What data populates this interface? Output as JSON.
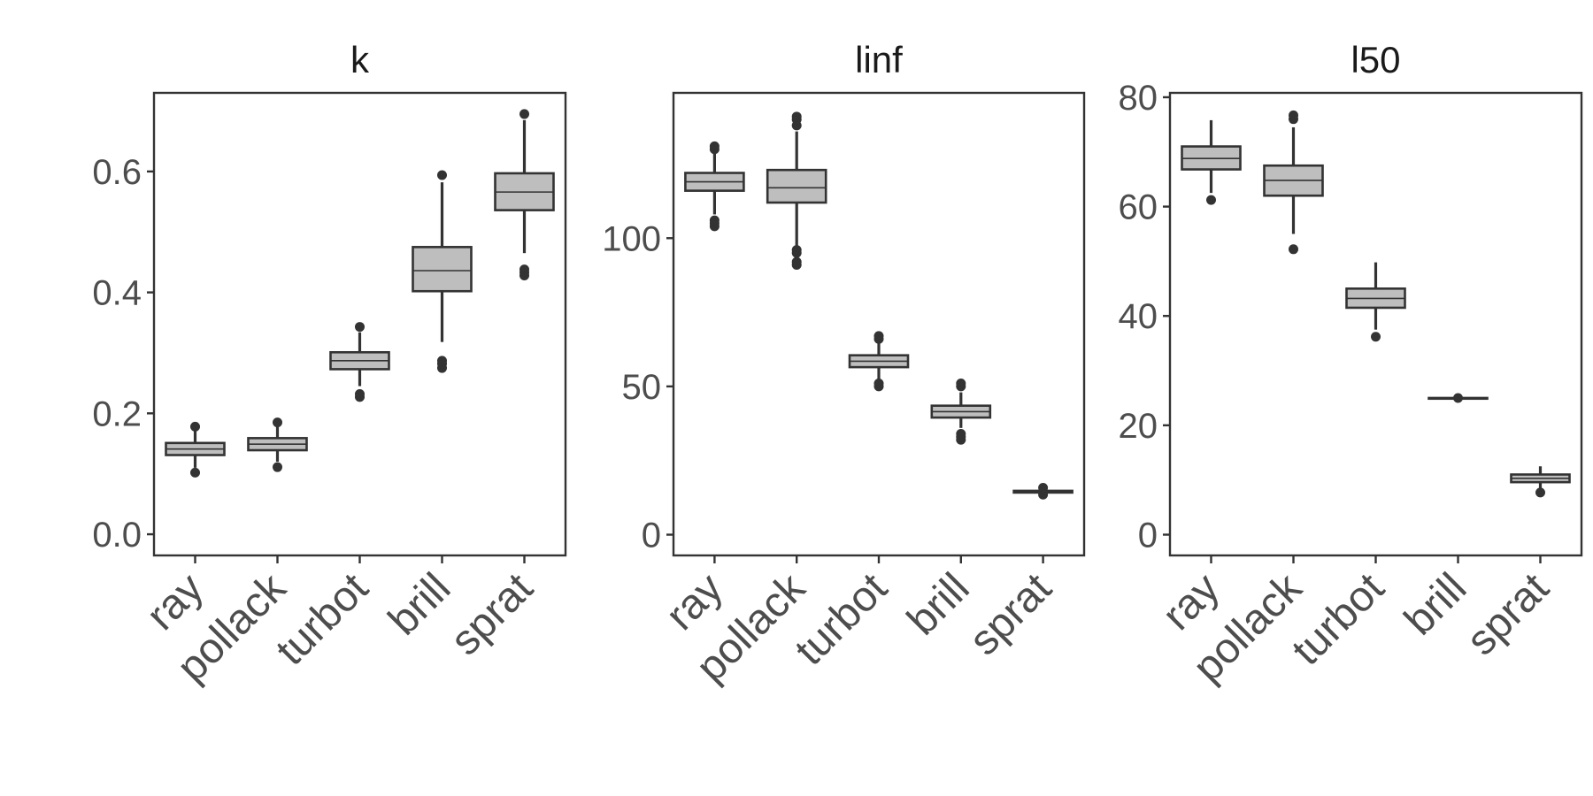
{
  "chart_data": [
    {
      "type": "box",
      "title": "k",
      "xlabel": "",
      "ylabel": "",
      "ylim": [
        -0.035,
        0.73
      ],
      "yticks": [
        0.0,
        0.2,
        0.4,
        0.6
      ],
      "ytick_labels": [
        "0.0",
        "0.2",
        "0.4",
        "0.6"
      ],
      "categories": [
        "ray",
        "pollack",
        "turbot",
        "brill",
        "sprat"
      ],
      "boxes": [
        {
          "min": 0.11,
          "q1": 0.131,
          "median": 0.141,
          "q3": 0.151,
          "max": 0.172,
          "outliers": [
            0.102,
            0.178
          ]
        },
        {
          "min": 0.12,
          "q1": 0.139,
          "median": 0.149,
          "q3": 0.159,
          "max": 0.181,
          "outliers": [
            0.111,
            0.185
          ]
        },
        {
          "min": 0.245,
          "q1": 0.273,
          "median": 0.287,
          "q3": 0.301,
          "max": 0.334,
          "outliers": [
            0.227,
            0.232,
            0.343
          ]
        },
        {
          "min": 0.318,
          "q1": 0.402,
          "median": 0.436,
          "q3": 0.475,
          "max": 0.582,
          "outliers": [
            0.275,
            0.282,
            0.287,
            0.594
          ]
        },
        {
          "min": 0.465,
          "q1": 0.536,
          "median": 0.566,
          "q3": 0.597,
          "max": 0.685,
          "outliers": [
            0.428,
            0.433,
            0.438,
            0.695
          ]
        }
      ]
    },
    {
      "type": "box",
      "title": "linf",
      "xlabel": "",
      "ylabel": "",
      "ylim": [
        -7,
        149
      ],
      "yticks": [
        0,
        50,
        100
      ],
      "ytick_labels": [
        "0",
        "50",
        "100"
      ],
      "categories": [
        "ray",
        "pollack",
        "turbot",
        "brill",
        "sprat"
      ],
      "boxes": [
        {
          "min": 108,
          "q1": 116,
          "median": 119,
          "q3": 122,
          "max": 129,
          "outliers": [
            104,
            105,
            106,
            130,
            131
          ]
        },
        {
          "min": 97,
          "q1": 112,
          "median": 117,
          "q3": 123,
          "max": 136,
          "outliers": [
            91,
            92,
            95,
            96,
            138,
            140,
            141
          ]
        },
        {
          "min": 52.5,
          "q1": 56.5,
          "median": 58.5,
          "q3": 60.5,
          "max": 64.5,
          "outliers": [
            50,
            51,
            66,
            67
          ]
        },
        {
          "min": 36,
          "q1": 39.5,
          "median": 41.5,
          "q3": 43.5,
          "max": 48,
          "outliers": [
            32,
            33,
            34,
            50,
            51
          ]
        },
        {
          "min": 14,
          "q1": 14.2,
          "median": 14.5,
          "q3": 14.8,
          "max": 15.2,
          "outliers": [
            13.5,
            15.8
          ]
        }
      ]
    },
    {
      "type": "box",
      "title": "l50",
      "xlabel": "",
      "ylabel": "",
      "ylim": [
        -3.8,
        80.8
      ],
      "yticks": [
        0,
        20,
        40,
        60,
        80
      ],
      "ytick_labels": [
        "0",
        "20",
        "40",
        "60",
        "80"
      ],
      "categories": [
        "ray",
        "pollack",
        "turbot",
        "brill",
        "sprat"
      ],
      "boxes": [
        {
          "min": 62.5,
          "q1": 66.8,
          "median": 68.8,
          "q3": 71,
          "max": 75.8,
          "outliers": [
            61.2
          ]
        },
        {
          "min": 55,
          "q1": 62,
          "median": 64.8,
          "q3": 67.5,
          "max": 74.5,
          "outliers": [
            52.2,
            76,
            76.7
          ]
        },
        {
          "min": 37.5,
          "q1": 41.5,
          "median": 43.2,
          "q3": 45,
          "max": 49.8,
          "outliers": [
            36.2
          ]
        },
        {
          "min": 25,
          "q1": 25,
          "median": 25,
          "q3": 25,
          "max": 25,
          "outliers": [
            25
          ]
        },
        {
          "min": 8.5,
          "q1": 9.6,
          "median": 10.3,
          "q3": 11,
          "max": 12.5,
          "outliers": [
            7.7
          ]
        }
      ]
    }
  ]
}
